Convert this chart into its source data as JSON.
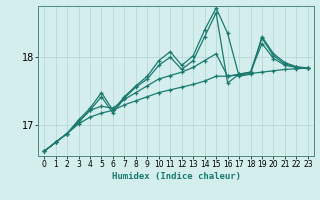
{
  "xlabel": "Humidex (Indice chaleur)",
  "bg_color": "#d4eeed",
  "line_color": "#1a7a6e",
  "grid_color": "#b8d8d8",
  "xlim": [
    -0.5,
    23.5
  ],
  "ylim": [
    16.55,
    18.75
  ],
  "yticks": [
    17,
    18
  ],
  "xticks": [
    0,
    1,
    2,
    3,
    4,
    5,
    6,
    7,
    8,
    9,
    10,
    11,
    12,
    13,
    14,
    15,
    16,
    17,
    18,
    19,
    20,
    21,
    22,
    23
  ],
  "lines": [
    {
      "x": [
        0,
        1,
        2,
        3,
        4,
        5,
        6,
        7,
        8,
        9,
        10,
        11,
        12,
        13,
        14,
        15,
        16,
        17,
        18,
        19,
        20,
        21,
        22,
        23
      ],
      "y": [
        16.62,
        16.75,
        16.88,
        17.02,
        17.12,
        17.18,
        17.22,
        17.3,
        17.36,
        17.42,
        17.48,
        17.52,
        17.56,
        17.6,
        17.65,
        17.72,
        17.72,
        17.74,
        17.76,
        17.78,
        17.8,
        17.82,
        17.83,
        17.84
      ]
    },
    {
      "x": [
        0,
        1,
        2,
        3,
        4,
        5,
        6,
        7,
        8,
        9,
        10,
        11,
        12,
        13,
        14,
        15,
        16,
        17,
        18,
        19,
        20,
        21,
        22,
        23
      ],
      "y": [
        16.62,
        16.75,
        16.88,
        17.05,
        17.22,
        17.28,
        17.25,
        17.38,
        17.48,
        17.58,
        17.68,
        17.73,
        17.78,
        17.85,
        17.95,
        18.05,
        17.72,
        17.75,
        17.78,
        18.2,
        17.98,
        17.88,
        17.85,
        17.84
      ]
    },
    {
      "x": [
        0,
        1,
        2,
        3,
        4,
        5,
        6,
        7,
        8,
        9,
        10,
        11,
        12,
        13,
        14,
        15,
        16,
        17,
        18,
        19,
        20,
        21,
        22,
        23
      ],
      "y": [
        16.62,
        16.75,
        16.88,
        17.05,
        17.22,
        17.42,
        17.18,
        17.4,
        17.56,
        17.68,
        17.88,
        18.0,
        17.82,
        17.95,
        18.3,
        18.65,
        17.62,
        17.75,
        17.78,
        18.28,
        18.02,
        17.9,
        17.85,
        17.84
      ]
    },
    {
      "x": [
        0,
        1,
        2,
        3,
        4,
        5,
        6,
        7,
        8,
        9,
        10,
        11,
        12,
        13,
        14,
        15,
        16,
        17,
        18,
        19,
        20,
        21,
        22,
        23
      ],
      "y": [
        16.62,
        16.75,
        16.88,
        17.08,
        17.25,
        17.48,
        17.22,
        17.42,
        17.58,
        17.72,
        17.95,
        18.08,
        17.88,
        18.02,
        18.4,
        18.72,
        18.35,
        17.72,
        17.75,
        18.3,
        18.05,
        17.92,
        17.86,
        17.84
      ]
    }
  ]
}
